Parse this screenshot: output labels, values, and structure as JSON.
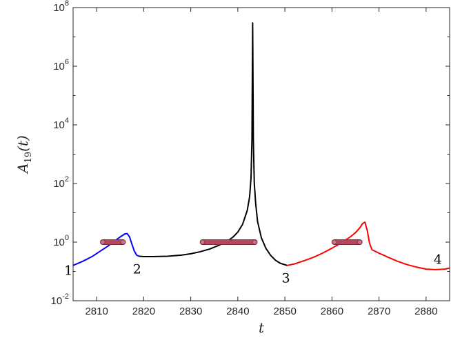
{
  "chart_data": {
    "type": "line",
    "xlabel": "t",
    "ylabel": "A19(t)",
    "ylabel_base": "A",
    "ylabel_sub": "19",
    "ylabel_suffix": "(t)",
    "xlim": [
      2805,
      2885
    ],
    "ylim": [
      0.01,
      100000000
    ],
    "yscale": "log",
    "grid": false,
    "x_ticks": [
      2810,
      2820,
      2830,
      2840,
      2850,
      2860,
      2870,
      2880
    ],
    "x_tick_labels": [
      "2810",
      "2820",
      "2830",
      "2840",
      "2850",
      "2860",
      "2870",
      "2880"
    ],
    "y_ticks": [
      0.01,
      1,
      100,
      10000,
      1000000,
      100000000
    ],
    "y_tick_labels": [
      {
        "base": "10",
        "exp": "-2"
      },
      {
        "base": "10",
        "exp": "0"
      },
      {
        "base": "10",
        "exp": "2"
      },
      {
        "base": "10",
        "exp": "4"
      },
      {
        "base": "10",
        "exp": "6"
      },
      {
        "base": "10",
        "exp": "8"
      }
    ],
    "series": [
      {
        "color": "#0000ff",
        "x": [
          2805,
          2807,
          2809,
          2811,
          2812.5,
          2814,
          2815,
          2816,
          2816.5,
          2817,
          2817.5,
          2818,
          2818.5,
          2819
        ],
        "y": [
          0.16,
          0.22,
          0.32,
          0.52,
          0.75,
          1.15,
          1.5,
          1.9,
          1.95,
          1.5,
          0.85,
          0.5,
          0.36,
          0.33
        ]
      },
      {
        "color": "#000000",
        "x": [
          2819,
          2820,
          2822,
          2825,
          2828,
          2830,
          2832,
          2834,
          2836,
          2838,
          2839,
          2840,
          2841,
          2842,
          2842.5,
          2842.8,
          2843,
          2843.15,
          2843.3,
          2843.5,
          2843.8,
          2844.2,
          2845,
          2846,
          2847,
          2848,
          2849,
          2850.5
        ],
        "y": [
          0.33,
          0.32,
          0.32,
          0.33,
          0.36,
          0.4,
          0.47,
          0.58,
          0.78,
          1.15,
          1.5,
          2.2,
          4,
          12,
          35,
          150,
          3000,
          30000000,
          3000,
          100,
          20,
          5,
          1.4,
          0.6,
          0.35,
          0.24,
          0.19,
          0.16
        ]
      },
      {
        "color": "#ff0000",
        "x": [
          2850.5,
          2852,
          2854,
          2856,
          2858,
          2860,
          2862,
          2864,
          2865,
          2866,
          2866.5,
          2867,
          2867.5,
          2868,
          2868.5,
          2870,
          2872,
          2874,
          2876,
          2878,
          2880,
          2882,
          2884,
          2885
        ],
        "y": [
          0.16,
          0.18,
          0.23,
          0.3,
          0.42,
          0.62,
          0.95,
          1.55,
          2.1,
          3.2,
          4.3,
          4.8,
          2.5,
          0.9,
          0.55,
          0.42,
          0.3,
          0.22,
          0.17,
          0.14,
          0.12,
          0.115,
          0.12,
          0.13
        ]
      }
    ],
    "intervals": [
      {
        "x_start": 2811.3,
        "x_end": 2815.6,
        "y": 1,
        "color": "#b2475e"
      },
      {
        "x_start": 2832.5,
        "x_end": 2843.6,
        "y": 1,
        "color": "#b2475e"
      },
      {
        "x_start": 2860.5,
        "x_end": 2865.9,
        "y": 1,
        "color": "#b2475e"
      }
    ],
    "annotations": [
      {
        "text": "1",
        "x": 2804,
        "y": 0.1
      },
      {
        "text": "2",
        "x": 2818.6,
        "y": 0.11
      },
      {
        "text": "3",
        "x": 2850.2,
        "y": 0.055
      },
      {
        "text": "4",
        "x": 2882.5,
        "y": 0.24
      }
    ]
  }
}
